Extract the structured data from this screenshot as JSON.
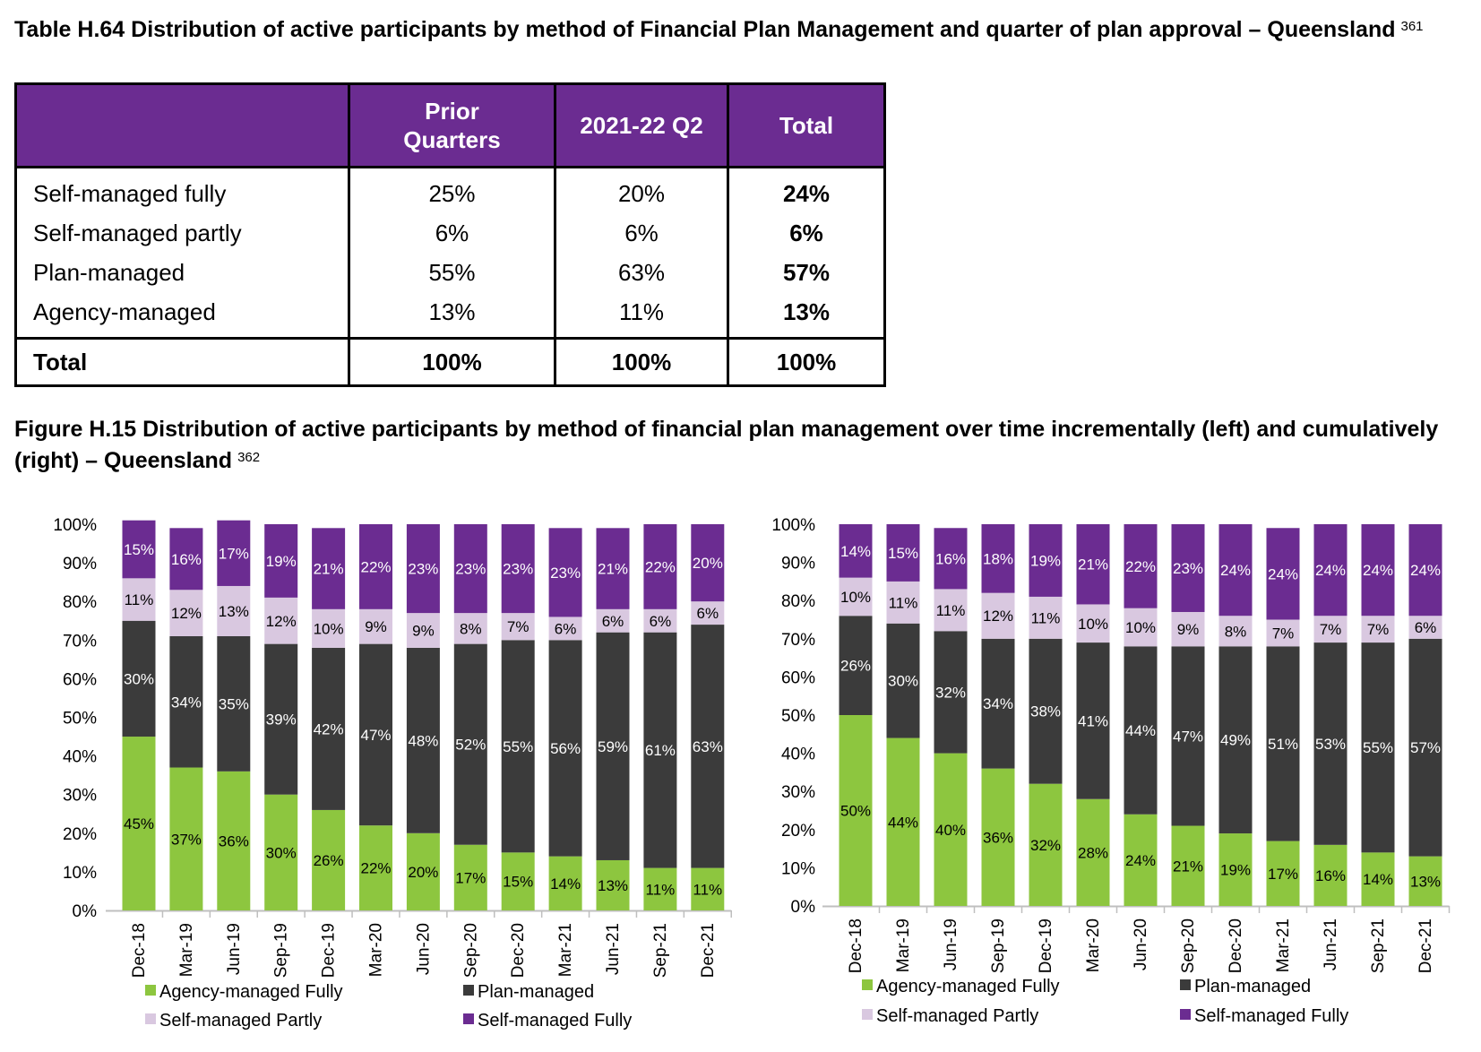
{
  "table": {
    "title": "Table H.64 Distribution of active participants by method of Financial Plan Management and quarter of plan approval – Queensland",
    "footnote": "361",
    "headers": [
      "",
      "Prior Quarters",
      "2021-22 Q2",
      "Total"
    ],
    "rows": [
      {
        "label": "Self-managed fully",
        "prior": "25%",
        "q2": "20%",
        "total": "24%"
      },
      {
        "label": "Self-managed partly",
        "prior": "6%",
        "q2": "6%",
        "total": "6%"
      },
      {
        "label": "Plan-managed",
        "prior": "55%",
        "q2": "63%",
        "total": "57%"
      },
      {
        "label": "Agency-managed",
        "prior": "13%",
        "q2": "11%",
        "total": "13%"
      }
    ],
    "total_row": {
      "label": "Total",
      "prior": "100%",
      "q2": "100%",
      "total": "100%"
    }
  },
  "figure": {
    "title": "Figure H.15 Distribution of active participants by method of financial plan management over time incrementally (left) and cumulatively (right) – Queensland",
    "footnote": "362"
  },
  "colors": {
    "agency": "#8dc63f",
    "plan": "#3b3b3b",
    "partly": "#d9c8e0",
    "fully": "#6b2c91",
    "header": "#6b2c91"
  },
  "chart_data": [
    {
      "type": "bar",
      "stacked": true,
      "categories": [
        "Dec-18",
        "Mar-19",
        "Jun-19",
        "Sep-19",
        "Dec-19",
        "Mar-20",
        "Jun-20",
        "Sep-20",
        "Dec-20",
        "Mar-21",
        "Jun-21",
        "Sep-21",
        "Dec-21"
      ],
      "y_ticks": [
        "0%",
        "10%",
        "20%",
        "30%",
        "40%",
        "50%",
        "60%",
        "70%",
        "80%",
        "90%",
        "100%"
      ],
      "ylim": [
        0,
        100
      ],
      "legend_position": "bottom",
      "series": [
        {
          "name": "Agency-managed Fully",
          "values": [
            45,
            37,
            36,
            30,
            26,
            22,
            20,
            17,
            15,
            14,
            13,
            11,
            11
          ]
        },
        {
          "name": "Plan-managed",
          "values": [
            30,
            34,
            35,
            39,
            42,
            47,
            48,
            52,
            55,
            56,
            59,
            61,
            63
          ]
        },
        {
          "name": "Self-managed Partly",
          "values": [
            11,
            12,
            13,
            12,
            10,
            9,
            9,
            8,
            7,
            6,
            6,
            6,
            6
          ]
        },
        {
          "name": "Self-managed Fully",
          "values": [
            15,
            16,
            17,
            19,
            21,
            22,
            23,
            23,
            23,
            23,
            21,
            22,
            20
          ]
        }
      ]
    },
    {
      "type": "bar",
      "stacked": true,
      "categories": [
        "Dec-18",
        "Mar-19",
        "Jun-19",
        "Sep-19",
        "Dec-19",
        "Mar-20",
        "Jun-20",
        "Sep-20",
        "Dec-20",
        "Mar-21",
        "Jun-21",
        "Sep-21",
        "Dec-21"
      ],
      "y_ticks": [
        "0%",
        "10%",
        "20%",
        "30%",
        "40%",
        "50%",
        "60%",
        "70%",
        "80%",
        "90%",
        "100%"
      ],
      "ylim": [
        0,
        100
      ],
      "legend_position": "bottom",
      "series": [
        {
          "name": "Agency-managed Fully",
          "values": [
            50,
            44,
            40,
            36,
            32,
            28,
            24,
            21,
            19,
            17,
            16,
            14,
            13
          ]
        },
        {
          "name": "Plan-managed",
          "values": [
            26,
            30,
            32,
            34,
            38,
            41,
            44,
            47,
            49,
            51,
            53,
            55,
            57
          ]
        },
        {
          "name": "Self-managed Partly",
          "values": [
            10,
            11,
            11,
            12,
            11,
            10,
            10,
            9,
            8,
            7,
            7,
            7,
            6
          ]
        },
        {
          "name": "Self-managed Fully",
          "values": [
            14,
            15,
            16,
            18,
            19,
            21,
            22,
            23,
            24,
            24,
            24,
            24,
            24
          ]
        }
      ]
    }
  ]
}
